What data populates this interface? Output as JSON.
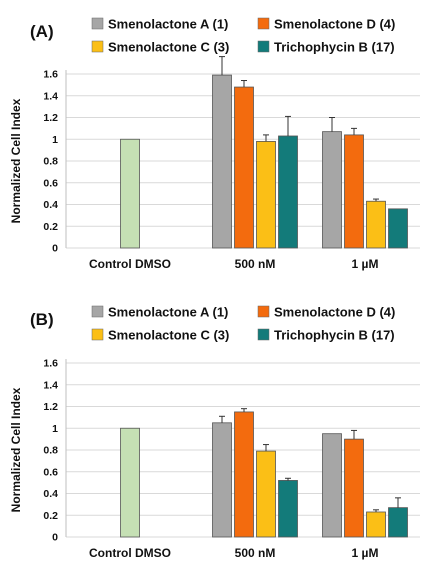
{
  "legend": [
    {
      "label": "Smenolactone A (1)",
      "color": "#a6a6a6"
    },
    {
      "label": "Smenolactone D (4)",
      "color": "#f36b0e"
    },
    {
      "label": "Smenolactone C (3)",
      "color": "#fbbf16"
    },
    {
      "label": "Trichophycin B (17)",
      "color": "#137b7a"
    }
  ],
  "control_color": "#c5e0b4",
  "chart_data": [
    {
      "type": "bar",
      "panel_label": "(A)",
      "ylabel": "Normalized Cell Index",
      "ylim": [
        0,
        1.6
      ],
      "yticks": [
        "0",
        "0.2",
        "0.4",
        "0.6",
        "0.8",
        "1",
        "1.2",
        "1.4",
        "1.6"
      ],
      "categories": [
        "Control DMSO",
        "500 nM",
        "1 µM"
      ],
      "control": {
        "category": "Control DMSO",
        "value": 1.0
      },
      "series": [
        {
          "name": "Smenolactone A (1)",
          "values": [
            null,
            1.59,
            1.07
          ],
          "errors": [
            null,
            0.17,
            0.13
          ]
        },
        {
          "name": "Smenolactone D (4)",
          "values": [
            null,
            1.48,
            1.04
          ],
          "errors": [
            null,
            0.06,
            0.06
          ]
        },
        {
          "name": "Smenolactone C (3)",
          "values": [
            null,
            0.98,
            0.43
          ],
          "errors": [
            null,
            0.06,
            0.02
          ]
        },
        {
          "name": "Trichophycin B (17)",
          "values": [
            null,
            1.03,
            0.36
          ],
          "errors": [
            null,
            0.18,
            0.0
          ]
        }
      ]
    },
    {
      "type": "bar",
      "panel_label": "(B)",
      "ylabel": "Normalized Cell Index",
      "ylim": [
        0,
        1.6
      ],
      "yticks": [
        "0",
        "0.2",
        "0.4",
        "0.6",
        "0.8",
        "1",
        "1.2",
        "1.4",
        "1.6"
      ],
      "categories": [
        "Control DMSO",
        "500 nM",
        "1 µM"
      ],
      "control": {
        "category": "Control DMSO",
        "value": 1.0
      },
      "series": [
        {
          "name": "Smenolactone A (1)",
          "values": [
            null,
            1.05,
            0.95
          ],
          "errors": [
            null,
            0.06,
            0.0
          ]
        },
        {
          "name": "Smenolactone D (4)",
          "values": [
            null,
            1.15,
            0.9
          ],
          "errors": [
            null,
            0.03,
            0.08
          ]
        },
        {
          "name": "Smenolactone C (3)",
          "values": [
            null,
            0.79,
            0.23
          ],
          "errors": [
            null,
            0.06,
            0.02
          ]
        },
        {
          "name": "Trichophycin B (17)",
          "values": [
            null,
            0.52,
            0.27
          ],
          "errors": [
            null,
            0.02,
            0.09
          ]
        }
      ]
    }
  ]
}
